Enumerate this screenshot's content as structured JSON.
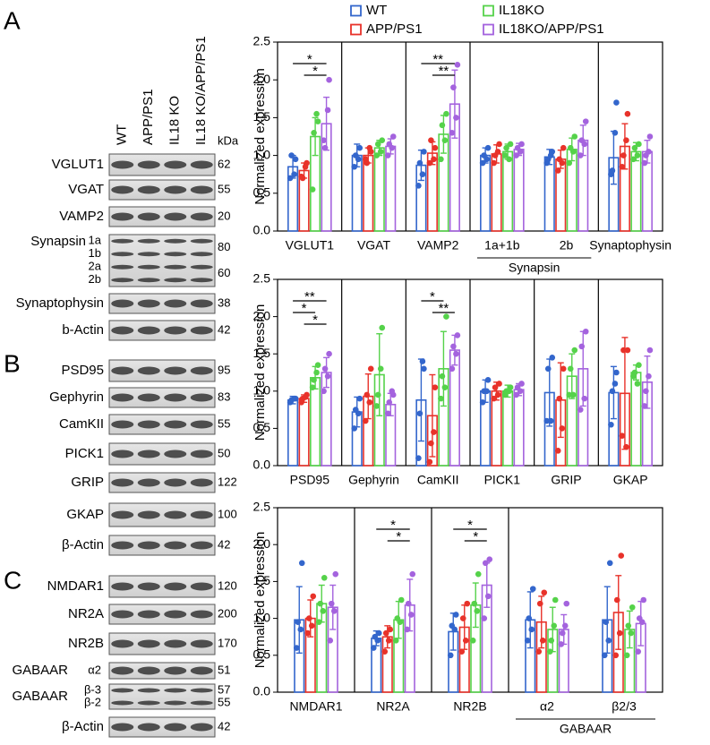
{
  "panel_labels": [
    "A",
    "B",
    "C"
  ],
  "lanes": [
    "WT",
    "APP/PS1",
    "IL18 KO",
    "IL18 KO/APP/PS1"
  ],
  "kda_unit": "kDa",
  "blots": [
    {
      "rows": [
        {
          "label": "VGLUT1",
          "kda": [
            62
          ]
        },
        {
          "label": "VGAT",
          "kda": [
            55
          ]
        },
        {
          "label": "VAMP2",
          "kda": [
            20
          ]
        },
        {
          "label": "Synapsin",
          "sublabels": [
            "1a",
            "1b",
            "2a",
            "2b"
          ],
          "kda": [
            80,
            60
          ]
        },
        {
          "label": "Synaptophysin",
          "kda": [
            38
          ]
        },
        {
          "label": "b-Actin",
          "kda": [
            42
          ]
        }
      ]
    },
    {
      "rows": [
        {
          "label": "PSD95",
          "kda": [
            95
          ]
        },
        {
          "label": "Gephyrin",
          "kda": [
            83
          ]
        },
        {
          "label": "CamKII",
          "kda": [
            55
          ]
        },
        {
          "label": "PICK1",
          "kda": [
            50
          ]
        },
        {
          "label": "GRIP",
          "kda": [
            122
          ]
        },
        {
          "label": "GKAP",
          "kda": [
            100
          ]
        },
        {
          "label": "β-Actin",
          "kda": [
            42
          ]
        }
      ]
    },
    {
      "rows": [
        {
          "label": "NMDAR1",
          "kda": [
            120
          ]
        },
        {
          "label": "NR2A",
          "kda": [
            200
          ]
        },
        {
          "label": "NR2B",
          "kda": [
            170
          ]
        },
        {
          "label": "GABAAR",
          "sublabels": [
            "α2"
          ],
          "kda": [
            51
          ]
        },
        {
          "label": "GABAAR",
          "sublabels": [
            "β-3",
            "β-2"
          ],
          "kda": [
            57,
            55
          ]
        },
        {
          "label": "β-Actin",
          "kda": [
            42
          ]
        }
      ]
    }
  ],
  "chart_data": [
    {
      "type": "bar",
      "y_label": "Normalized expression",
      "categories": [
        "VGLUT1",
        "VGAT",
        "VAMP2",
        "1a+1b",
        "2b",
        "Synaptophysin"
      ],
      "category_groups": [
        {
          "label": "Synapsin",
          "categories": [
            "1a+1b",
            "2b"
          ]
        }
      ],
      "ylim": [
        0,
        2.5
      ],
      "yticks": [
        {
          "value": 0,
          "label": "0.0"
        },
        0.5,
        {
          "value": 1,
          "label": "1.0"
        },
        1.5,
        {
          "value": 2,
          "label": "2.0"
        },
        2.5
      ],
      "series": [
        {
          "name": "WT",
          "color": "#3366cc",
          "values": [
            0.85,
            1.0,
            0.87,
            1.0,
            0.98,
            0.97
          ],
          "errors": [
            0.15,
            0.15,
            0.2,
            0.1,
            0.1,
            0.35
          ],
          "points": [
            [
              0.7,
              0.95,
              1.0,
              0.75
            ],
            [
              0.85,
              1.1,
              1.0,
              0.95
            ],
            [
              0.6,
              1.05,
              0.9,
              0.75
            ],
            [
              0.9,
              1.1,
              1.0,
              0.95
            ],
            [
              0.9,
              1.05,
              0.95,
              1.0
            ],
            [
              0.75,
              1.7,
              0.8,
              1.3
            ]
          ]
        },
        {
          "name": "APP/PS1",
          "color": "#e8322a",
          "values": [
            0.8,
            1.0,
            1.03,
            1.02,
            0.95,
            1.12
          ],
          "errors": [
            0.1,
            0.1,
            0.15,
            0.12,
            0.12,
            0.3
          ],
          "points": [
            [
              0.72,
              0.9,
              0.7,
              0.85
            ],
            [
              0.95,
              1.05,
              0.9,
              1.1
            ],
            [
              0.9,
              1.1,
              1.2,
              0.95
            ],
            [
              0.9,
              1.15,
              1.0,
              1.05
            ],
            [
              0.8,
              1.1,
              0.95,
              0.9
            ],
            [
              0.85,
              1.55,
              1.0,
              1.2
            ]
          ]
        },
        {
          "name": "IL18KO",
          "color": "#55d24a",
          "values": [
            1.25,
            1.1,
            1.28,
            1.05,
            1.08,
            1.05
          ],
          "errors": [
            0.25,
            0.1,
            0.25,
            0.1,
            0.15,
            0.12
          ],
          "points": [
            [
              0.55,
              1.45,
              1.3,
              1.55
            ],
            [
              1.0,
              1.2,
              1.15,
              1.05
            ],
            [
              0.95,
              1.55,
              1.4,
              1.2
            ],
            [
              1.0,
              1.15,
              1.1,
              0.95
            ],
            [
              0.9,
              1.25,
              1.1,
              1.05
            ],
            [
              0.95,
              1.15,
              1.1,
              1.0
            ]
          ]
        },
        {
          "name": "IL18KO/APP/PS1",
          "color": "#a463de",
          "values": [
            1.42,
            1.12,
            1.68,
            1.08,
            1.2,
            1.05
          ],
          "errors": [
            0.35,
            0.1,
            0.45,
            0.08,
            0.2,
            0.15
          ],
          "points": [
            [
              1.2,
              2.0,
              1.1,
              1.6
            ],
            [
              1.0,
              1.25,
              1.15,
              1.1
            ],
            [
              1.3,
              2.2,
              1.9,
              1.5
            ],
            [
              1.0,
              1.15,
              1.1,
              1.05
            ],
            [
              1.0,
              1.45,
              1.2,
              1.15
            ],
            [
              0.9,
              1.25,
              1.0,
              1.05
            ]
          ]
        }
      ],
      "annotations": [
        {
          "label": "*",
          "category": "VGLUT1",
          "series": [
            0,
            3
          ]
        },
        {
          "label": "*",
          "category": "VGLUT1",
          "series": [
            1,
            3
          ]
        },
        {
          "label": "**",
          "category": "VAMP2",
          "series": [
            0,
            3
          ]
        },
        {
          "label": "**",
          "category": "VAMP2",
          "series": [
            1,
            3
          ]
        }
      ]
    },
    {
      "type": "bar",
      "y_label": "Normalized expression",
      "categories": [
        "PSD95",
        "Gephyrin",
        "CamKII",
        "PICK1",
        "GRIP",
        "GKAP"
      ],
      "ylim": [
        0,
        2.5
      ],
      "yticks": [
        {
          "value": 0,
          "label": "0.0"
        },
        0.5,
        {
          "value": 1,
          "label": "1.0"
        },
        1.5,
        {
          "value": 2,
          "label": "2.0"
        },
        2.5
      ],
      "series": [
        {
          "color": "#3366cc",
          "values": [
            0.88,
            0.72,
            0.88,
            1.0,
            0.98,
            0.98
          ],
          "errors": [
            0.05,
            0.2,
            0.55,
            0.15,
            0.45,
            0.35
          ],
          "points": [
            [
              0.85,
              0.9,
              0.88,
              0.9
            ],
            [
              0.5,
              0.9,
              0.75,
              0.7
            ],
            [
              0.1,
              1.3,
              0.7,
              1.4
            ],
            [
              0.85,
              1.15,
              1.0,
              1.0
            ],
            [
              0.6,
              1.45,
              1.3,
              0.6
            ],
            [
              0.55,
              1.25,
              1.0,
              1.1
            ]
          ]
        },
        {
          "color": "#e8322a",
          "values": [
            0.9,
            0.93,
            0.67,
            1.0,
            0.88,
            0.97
          ],
          "errors": [
            0.05,
            0.3,
            0.55,
            0.12,
            0.5,
            0.75
          ],
          "points": [
            [
              0.85,
              0.95,
              0.9,
              0.92
            ],
            [
              0.6,
              1.3,
              0.95,
              0.85
            ],
            [
              0.05,
              1.05,
              0.3,
              0.45
            ],
            [
              0.9,
              1.1,
              1.05,
              0.95
            ],
            [
              0.2,
              1.3,
              0.9,
              0.5
            ],
            [
              0.4,
              1.55,
              1.55,
              0.25
            ]
          ]
        },
        {
          "color": "#55d24a",
          "values": [
            1.18,
            1.22,
            1.3,
            1.0,
            1.2,
            1.25
          ],
          "errors": [
            0.15,
            0.55,
            0.5,
            0.08,
            0.3,
            0.1
          ],
          "points": [
            [
              1.05,
              1.35,
              1.15,
              1.25
            ],
            [
              0.8,
              1.85,
              0.95,
              1.3
            ],
            [
              0.9,
              2.0,
              1.2,
              1.05
            ],
            [
              0.95,
              1.05,
              1.0,
              1.0
            ],
            [
              0.95,
              1.55,
              1.3,
              0.95
            ],
            [
              1.2,
              1.35,
              1.25,
              1.1
            ]
          ]
        },
        {
          "color": "#a463de",
          "values": [
            1.25,
            0.82,
            1.55,
            1.02,
            1.3,
            1.12
          ],
          "errors": [
            0.2,
            0.15,
            0.2,
            0.08,
            0.5,
            0.35
          ],
          "points": [
            [
              1.0,
              1.5,
              1.3,
              1.2
            ],
            [
              0.7,
              0.95,
              0.85,
              1.0
            ],
            [
              1.3,
              1.75,
              1.6,
              1.5
            ],
            [
              0.95,
              1.1,
              1.05,
              1.0
            ],
            [
              0.75,
              1.8,
              1.6,
              0.9
            ],
            [
              0.8,
              1.55,
              1.0,
              1.2
            ]
          ]
        }
      ],
      "annotations": [
        {
          "label": "**",
          "category": "PSD95",
          "series": [
            0,
            3
          ]
        },
        {
          "label": "*",
          "category": "PSD95",
          "series": [
            0,
            2
          ]
        },
        {
          "label": "*",
          "category": "PSD95",
          "series": [
            1,
            3
          ]
        },
        {
          "label": "*",
          "category": "CamKII",
          "series": [
            0,
            2
          ]
        },
        {
          "label": "**",
          "category": "CamKII",
          "series": [
            1,
            3
          ]
        }
      ]
    },
    {
      "type": "bar",
      "y_label": "Normalized expression",
      "categories": [
        "NMDAR1",
        "NR2A",
        "NR2B",
        "α2",
        "β2/3"
      ],
      "category_groups": [
        {
          "label": "GABAAR",
          "categories": [
            "α2",
            "β2/3"
          ]
        }
      ],
      "ylim": [
        0,
        2.5
      ],
      "yticks": [
        {
          "value": 0,
          "label": "0.0"
        },
        0.5,
        {
          "value": 1,
          "label": "1.0"
        },
        1.5,
        {
          "value": 2,
          "label": "2.0"
        },
        2.5
      ],
      "series": [
        {
          "color": "#3366cc",
          "values": [
            0.98,
            0.73,
            0.82,
            0.98,
            0.98
          ],
          "errors": [
            0.45,
            0.1,
            0.25,
            0.38,
            0.45
          ],
          "points": [
            [
              0.6,
              1.75,
              0.95,
              0.85
            ],
            [
              0.6,
              0.8,
              0.75,
              0.7
            ],
            [
              0.5,
              1.05,
              0.9,
              0.85
            ],
            [
              0.7,
              1.4,
              1.0,
              0.85
            ],
            [
              0.5,
              1.75,
              0.95,
              0.7
            ]
          ]
        },
        {
          "color": "#e8322a",
          "values": [
            1.0,
            0.75,
            0.88,
            0.95,
            1.08
          ],
          "errors": [
            0.25,
            0.15,
            0.3,
            0.35,
            0.5
          ],
          "points": [
            [
              0.8,
              1.3,
              1.0,
              0.9
            ],
            [
              0.55,
              0.85,
              0.8,
              0.7
            ],
            [
              0.55,
              1.2,
              1.0,
              0.7
            ],
            [
              0.55,
              1.35,
              1.2,
              0.7
            ],
            [
              0.5,
              1.85,
              1.25,
              0.8
            ]
          ]
        },
        {
          "color": "#55d24a",
          "values": [
            1.2,
            0.98,
            1.18,
            0.85,
            0.85
          ],
          "errors": [
            0.25,
            0.25,
            0.3,
            0.3,
            0.25
          ],
          "points": [
            [
              0.95,
              1.55,
              1.2,
              1.1
            ],
            [
              0.7,
              1.25,
              1.0,
              0.95
            ],
            [
              0.7,
              1.6,
              1.2,
              1.1
            ],
            [
              0.55,
              1.25,
              0.7,
              0.9
            ],
            [
              0.5,
              1.15,
              0.9,
              0.8
            ]
          ]
        },
        {
          "color": "#a463de",
          "values": [
            1.15,
            1.18,
            1.45,
            0.85,
            0.93
          ],
          "errors": [
            0.3,
            0.35,
            0.3,
            0.2,
            0.3
          ],
          "points": [
            [
              0.7,
              1.6,
              1.2,
              1.1
            ],
            [
              0.85,
              1.6,
              1.2,
              1.05
            ],
            [
              1.0,
              1.8,
              1.75,
              1.3
            ],
            [
              0.65,
              1.2,
              0.8,
              0.9
            ],
            [
              0.55,
              1.25,
              1.0,
              0.95
            ]
          ]
        }
      ],
      "annotations": [
        {
          "label": "*",
          "category": "NR2A",
          "series": [
            0,
            3
          ]
        },
        {
          "label": "*",
          "category": "NR2A",
          "series": [
            1,
            3
          ]
        },
        {
          "label": "*",
          "category": "NR2B",
          "series": [
            0,
            3
          ]
        },
        {
          "label": "*",
          "category": "NR2B",
          "series": [
            1,
            3
          ]
        }
      ]
    }
  ]
}
